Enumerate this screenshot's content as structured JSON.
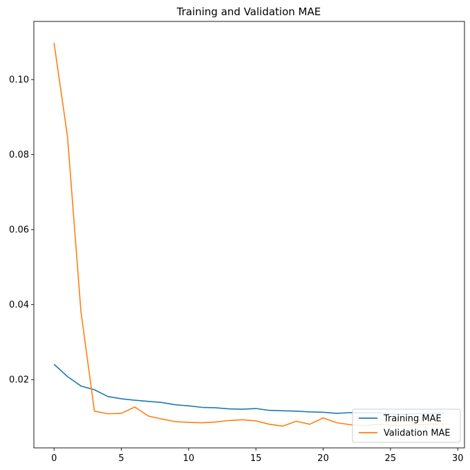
{
  "chart_data": {
    "type": "line",
    "title": "Training and Validation MAE",
    "xlabel": "",
    "ylabel": "",
    "xlim": [
      -1.5,
      30.5
    ],
    "ylim": [
      0.0018,
      0.1155
    ],
    "xticks": [
      0,
      5,
      10,
      15,
      20,
      25,
      30
    ],
    "yticks": [
      0.02,
      0.04,
      0.06,
      0.08,
      0.1
    ],
    "ytick_labels": [
      "0.02",
      "0.04",
      "0.06",
      "0.08",
      "0.10"
    ],
    "grid": false,
    "legend_position": "lower-right",
    "x": [
      0,
      1,
      2,
      3,
      4,
      5,
      6,
      7,
      8,
      9,
      10,
      11,
      12,
      13,
      14,
      15,
      16,
      17,
      18,
      19,
      20,
      21,
      22,
      23,
      24,
      25,
      26,
      27,
      28,
      29
    ],
    "series": [
      {
        "name": "Training MAE",
        "color": "#1f77b4",
        "values": [
          0.0241,
          0.0208,
          0.0183,
          0.0173,
          0.0155,
          0.0149,
          0.0145,
          0.0142,
          0.0139,
          0.0133,
          0.013,
          0.0126,
          0.0125,
          0.0122,
          0.0121,
          0.0123,
          0.0118,
          0.0117,
          0.0116,
          0.0114,
          0.0113,
          0.011,
          0.0112,
          0.0111,
          0.0112,
          0.0108,
          0.0108,
          0.0109,
          0.011,
          0.0111
        ]
      },
      {
        "name": "Validation MAE",
        "color": "#ff7f0e",
        "values": [
          0.1098,
          0.0848,
          0.0381,
          0.0116,
          0.0109,
          0.011,
          0.0127,
          0.0103,
          0.0095,
          0.0088,
          0.0086,
          0.0085,
          0.0087,
          0.0091,
          0.0093,
          0.009,
          0.0081,
          0.0076,
          0.0089,
          0.0081,
          0.0098,
          0.0085,
          0.008,
          0.0077,
          0.0081,
          0.0079,
          0.0078,
          0.008,
          0.0081,
          0.0082
        ]
      }
    ]
  }
}
